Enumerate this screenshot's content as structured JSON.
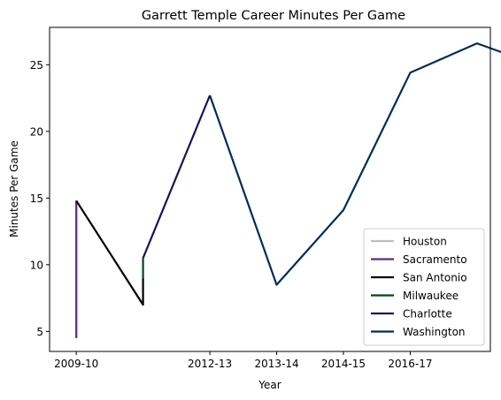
{
  "chart_data": {
    "type": "line",
    "title": "Garrett Temple Career Minutes Per Game",
    "xlabel": "Year",
    "ylabel": "Minutes Per Game",
    "x_ticks": [
      {
        "label": "2009-10",
        "x": 0
      },
      {
        "label": "2012-13",
        "x": 2
      },
      {
        "label": "2013-14",
        "x": 3
      },
      {
        "label": "2014-15",
        "x": 4
      },
      {
        "label": "2016-17",
        "x": 5
      }
    ],
    "xlim": [
      -0.4,
      6.2
    ],
    "ylim": [
      3.5,
      27.8
    ],
    "y_ticks": [
      5,
      10,
      15,
      20,
      25
    ],
    "grid": false,
    "legend_position": "bottom-right",
    "series": [
      {
        "name": "Houston",
        "color": "#bdbdbd",
        "points": [
          [
            0,
            4.5
          ],
          [
            0,
            14.8
          ]
        ]
      },
      {
        "name": "Sacramento",
        "color": "#5a2d82",
        "points": [
          [
            0,
            4.5
          ],
          [
            0,
            14.8
          ]
        ]
      },
      {
        "name": "San Antonio",
        "color": "#000000",
        "points": [
          [
            0,
            14.8
          ],
          [
            1,
            7.0
          ],
          [
            1,
            9.0
          ]
        ]
      },
      {
        "name": "Milwaukee",
        "color": "#00471b",
        "points": [
          [
            1,
            9.0
          ],
          [
            1,
            10.5
          ]
        ]
      },
      {
        "name": "Charlotte",
        "color": "#1d1160",
        "points": [
          [
            1,
            10.5
          ],
          [
            2,
            22.7
          ]
        ]
      },
      {
        "name": "Washington",
        "color": "#002b5c",
        "points": [
          [
            2,
            22.7
          ],
          [
            3,
            8.5
          ],
          [
            4,
            14.1
          ],
          [
            5,
            24.4
          ],
          [
            6,
            26.6
          ],
          [
            7,
            24.8
          ]
        ]
      }
    ]
  }
}
